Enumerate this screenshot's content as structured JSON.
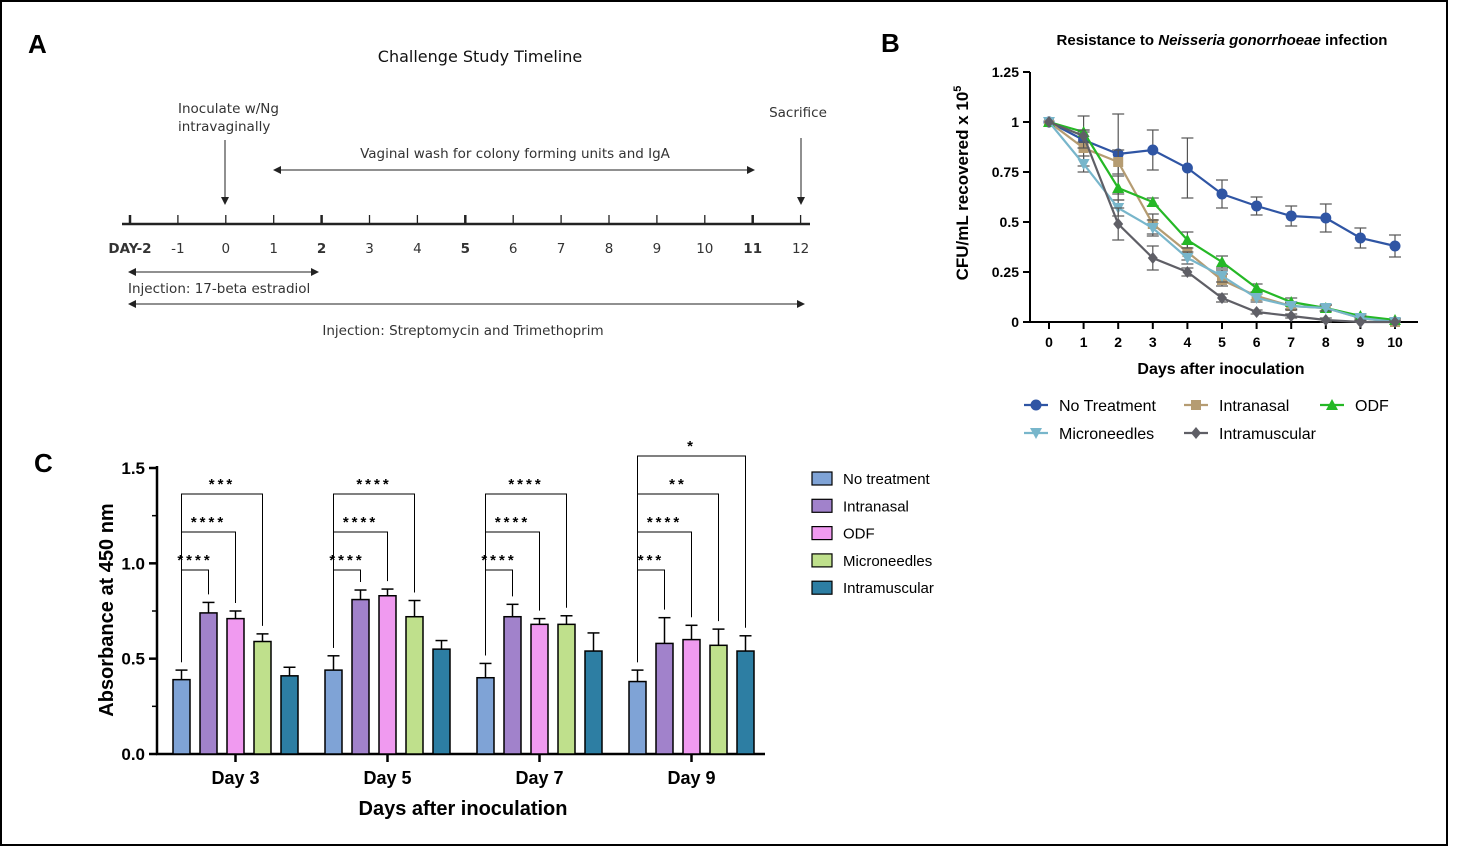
{
  "panels": {
    "a": {
      "label": "A",
      "title": "Challenge Study Timeline",
      "ticks": [
        "DAY-2",
        "-1",
        "0",
        "1",
        "2",
        "3",
        "4",
        "5",
        "6",
        "7",
        "8",
        "9",
        "10",
        "11",
        "12"
      ],
      "bold_ticks": [
        "2",
        "5",
        "11"
      ],
      "events": {
        "inoculate_line1": "Inoculate w/Ng",
        "inoculate_line2": "intravaginally",
        "wash": "Vaginal wash for colony forming units and IgA",
        "sacrifice": "Sacrifice",
        "estradiol": "Injection: 17-beta estradiol",
        "antibiotics": "Injection: Streptomycin and Trimethoprim"
      }
    },
    "b": {
      "label": "B"
    },
    "c": {
      "label": "C"
    }
  },
  "chart_data": [
    {
      "type": "line",
      "panel": "B",
      "title_pre": "Resistance to ",
      "title_italic": "Neisseria gonorrhoeae",
      "title_post": " infection",
      "xlabel": "Days after inoculation",
      "ylabel_main": "CFU/mL recovered x 10",
      "ylabel_sup": "5",
      "x": [
        0,
        1,
        2,
        3,
        4,
        5,
        6,
        7,
        8,
        9,
        10
      ],
      "xlim": [
        0,
        10
      ],
      "ylim": [
        0,
        1.25
      ],
      "yticks": [
        "0",
        "0.25",
        "0.5",
        "0.75",
        "1",
        "1.25"
      ],
      "grid": false,
      "legend_position": "bottom",
      "series": [
        {
          "name": "No Treatment",
          "color": "#2f55a4",
          "marker": "circle",
          "values": [
            1.0,
            0.91,
            0.84,
            0.86,
            0.77,
            0.64,
            0.58,
            0.53,
            0.52,
            0.42,
            0.38
          ],
          "errors": [
            0.0,
            0.04,
            0.2,
            0.1,
            0.15,
            0.07,
            0.045,
            0.05,
            0.07,
            0.05,
            0.055
          ]
        },
        {
          "name": "Intranasal",
          "color": "#b59c72",
          "marker": "square",
          "values": [
            1.0,
            0.87,
            0.8,
            0.49,
            0.35,
            0.21,
            0.13,
            0.08,
            0.07,
            0.02,
            0.0
          ],
          "errors": [
            0.0,
            0.09,
            0.06,
            0.05,
            0.04,
            0.03,
            0.02,
            0.015,
            0.015,
            0.01,
            0.005
          ]
        },
        {
          "name": "ODF",
          "color": "#25b826",
          "marker": "triangle",
          "values": [
            1.0,
            0.95,
            0.67,
            0.6,
            0.41,
            0.3,
            0.17,
            0.1,
            0.07,
            0.03,
            0.01
          ],
          "errors": [
            0.0,
            0.08,
            0.06,
            0.02,
            0.04,
            0.03,
            0.02,
            0.02,
            0.015,
            0.01,
            0.005
          ]
        },
        {
          "name": "Microneedles",
          "color": "#78b6cb",
          "marker": "triangle-down",
          "values": [
            1.0,
            0.79,
            0.57,
            0.47,
            0.32,
            0.23,
            0.12,
            0.08,
            0.07,
            0.02,
            0.0
          ],
          "errors": [
            0.0,
            0.04,
            0.04,
            0.04,
            0.03,
            0.03,
            0.02,
            0.02,
            0.015,
            0.01,
            0.005
          ]
        },
        {
          "name": "Intramuscular",
          "color": "#5f5f66",
          "marker": "diamond",
          "values": [
            1.0,
            0.93,
            0.49,
            0.32,
            0.25,
            0.12,
            0.05,
            0.03,
            0.01,
            0.0,
            0.0
          ],
          "errors": [
            0.0,
            0.03,
            0.08,
            0.06,
            0.02,
            0.02,
            0.01,
            0.01,
            0.01,
            0.005,
            0.005
          ]
        }
      ]
    },
    {
      "type": "bar",
      "panel": "C",
      "xlabel": "Days after inoculation",
      "ylabel": "Absorbance at 450 nm",
      "categories": [
        "Day 3",
        "Day 5",
        "Day 7",
        "Day 9"
      ],
      "ylim": [
        0,
        1.5
      ],
      "yticks": [
        "0.0",
        "0.5",
        "1.0",
        "1.5"
      ],
      "grid": false,
      "legend_position": "right",
      "series": [
        {
          "name": "No treatment",
          "color": "#7fa3d6",
          "values": [
            0.39,
            0.44,
            0.4,
            0.38
          ],
          "errors": [
            0.05,
            0.075,
            0.075,
            0.06
          ]
        },
        {
          "name": "Intranasal",
          "color": "#a182cb",
          "values": [
            0.74,
            0.81,
            0.72,
            0.58
          ],
          "errors": [
            0.055,
            0.05,
            0.065,
            0.135
          ]
        },
        {
          "name": "ODF",
          "color": "#f09af0",
          "values": [
            0.71,
            0.83,
            0.68,
            0.6
          ],
          "errors": [
            0.04,
            0.035,
            0.03,
            0.075
          ]
        },
        {
          "name": "Microneedles",
          "color": "#bfe08c",
          "values": [
            0.59,
            0.72,
            0.68,
            0.57
          ],
          "errors": [
            0.04,
            0.085,
            0.045,
            0.085
          ]
        },
        {
          "name": "Intramuscular",
          "color": "#2d7ea3",
          "values": [
            0.41,
            0.55,
            0.54,
            0.54
          ],
          "errors": [
            0.045,
            0.045,
            0.095,
            0.08
          ]
        }
      ],
      "significance": [
        {
          "category": "Day 3",
          "vs": "Intranasal",
          "label": "****"
        },
        {
          "category": "Day 3",
          "vs": "ODF",
          "label": "****"
        },
        {
          "category": "Day 3",
          "vs": "Microneedles",
          "label": "***"
        },
        {
          "category": "Day 5",
          "vs": "Intranasal",
          "label": "****"
        },
        {
          "category": "Day 5",
          "vs": "ODF",
          "label": "****"
        },
        {
          "category": "Day 5",
          "vs": "Microneedles",
          "label": "****"
        },
        {
          "category": "Day 7",
          "vs": "Intranasal",
          "label": "****"
        },
        {
          "category": "Day 7",
          "vs": "ODF",
          "label": "****"
        },
        {
          "category": "Day 7",
          "vs": "Microneedles",
          "label": "****"
        },
        {
          "category": "Day 9",
          "vs": "Intranasal",
          "label": "***"
        },
        {
          "category": "Day 9",
          "vs": "ODF",
          "label": "****"
        },
        {
          "category": "Day 9",
          "vs": "Microneedles",
          "label": "**"
        },
        {
          "category": "Day 9",
          "vs": "Intramuscular",
          "label": "*"
        }
      ]
    }
  ]
}
